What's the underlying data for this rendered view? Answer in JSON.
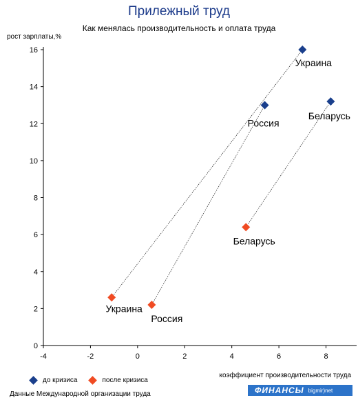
{
  "title": "Прилежный труд",
  "subtitle": "Как менялась производительность и оплата труда",
  "source": "Данные Международной организации труда",
  "logo": {
    "brand": "ФИНАНСЫ",
    "sub": "bigmir)net"
  },
  "colors": {
    "before": "#1a3f8c",
    "after": "#f04b23",
    "title": "#1b3a8a",
    "axis": "#000000"
  },
  "legend": [
    {
      "label": "до кризиса",
      "color": "#1a3f8c"
    },
    {
      "label": "после кризиса",
      "color": "#f04b23"
    }
  ],
  "chart_data": {
    "type": "scatter",
    "xlabel": "коэффициент производительности труда",
    "ylabel": "рост зарплаты,%",
    "xlim": [
      -4,
      9.3
    ],
    "ylim": [
      0,
      16
    ],
    "xticks": [
      -4,
      -2,
      0,
      2,
      4,
      6,
      8
    ],
    "yticks": [
      0,
      2,
      4,
      6,
      8,
      10,
      12,
      14,
      16
    ],
    "grid": false,
    "legend_position": "bottom-left",
    "series": [
      {
        "name": "до кризиса",
        "points": [
          {
            "label": "Украина",
            "x": 7.0,
            "y": 16.0
          },
          {
            "label": "Россия",
            "x": 5.4,
            "y": 13.0
          },
          {
            "label": "Беларусь",
            "x": 8.2,
            "y": 13.2
          }
        ]
      },
      {
        "name": "после кризиса",
        "points": [
          {
            "label": "Украина",
            "x": -1.1,
            "y": 2.6
          },
          {
            "label": "Россия",
            "x": 0.6,
            "y": 2.2
          },
          {
            "label": "Беларусь",
            "x": 4.6,
            "y": 6.4
          }
        ]
      }
    ],
    "connections": [
      {
        "country": "Украина"
      },
      {
        "country": "Россия"
      },
      {
        "country": "Беларусь"
      }
    ]
  }
}
